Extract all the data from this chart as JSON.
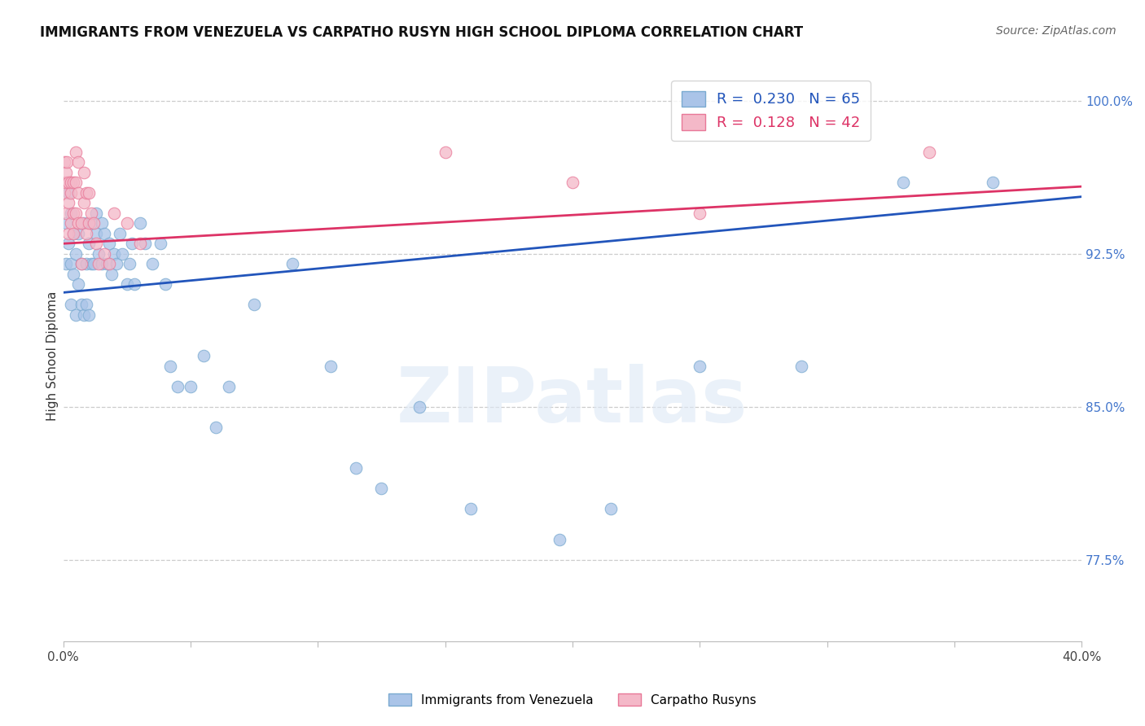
{
  "title": "IMMIGRANTS FROM VENEZUELA VS CARPATHO RUSYN HIGH SCHOOL DIPLOMA CORRELATION CHART",
  "source": "Source: ZipAtlas.com",
  "ylabel": "High School Diploma",
  "xlim": [
    0.0,
    0.4
  ],
  "ylim": [
    0.735,
    1.015
  ],
  "xticks": [
    0.0,
    0.05,
    0.1,
    0.15,
    0.2,
    0.25,
    0.3,
    0.35,
    0.4
  ],
  "xtick_labels": [
    "0.0%",
    "",
    "",
    "",
    "",
    "",
    "",
    "",
    "40.0%"
  ],
  "ytick_labels_right": [
    "100.0%",
    "92.5%",
    "85.0%",
    "77.5%"
  ],
  "yticks_right": [
    1.0,
    0.925,
    0.85,
    0.775
  ],
  "grid_color": "#cccccc",
  "background_color": "#ffffff",
  "watermark": "ZIPatlas",
  "legend_R_blue": "0.230",
  "legend_N_blue": "65",
  "legend_R_pink": "0.128",
  "legend_N_pink": "42",
  "blue_color": "#aac4e8",
  "pink_color": "#f4b8c8",
  "blue_edge_color": "#7aaad0",
  "pink_edge_color": "#e87898",
  "blue_line_color": "#2255bb",
  "pink_line_color": "#dd3366",
  "blue_trend": [
    0.0,
    0.4,
    0.906,
    0.953
  ],
  "pink_trend": [
    0.0,
    0.4,
    0.93,
    0.958
  ],
  "blue_scatter_x": [
    0.001,
    0.001,
    0.002,
    0.002,
    0.003,
    0.003,
    0.003,
    0.004,
    0.004,
    0.005,
    0.005,
    0.006,
    0.006,
    0.007,
    0.007,
    0.008,
    0.008,
    0.009,
    0.009,
    0.01,
    0.01,
    0.011,
    0.011,
    0.012,
    0.013,
    0.013,
    0.014,
    0.015,
    0.015,
    0.016,
    0.017,
    0.018,
    0.019,
    0.02,
    0.021,
    0.022,
    0.023,
    0.025,
    0.026,
    0.027,
    0.028,
    0.03,
    0.032,
    0.035,
    0.038,
    0.04,
    0.042,
    0.045,
    0.05,
    0.055,
    0.06,
    0.065,
    0.075,
    0.09,
    0.105,
    0.115,
    0.125,
    0.14,
    0.16,
    0.195,
    0.215,
    0.25,
    0.29,
    0.33,
    0.365
  ],
  "blue_scatter_y": [
    0.92,
    0.94,
    0.93,
    0.955,
    0.9,
    0.92,
    0.945,
    0.915,
    0.935,
    0.895,
    0.925,
    0.91,
    0.935,
    0.9,
    0.92,
    0.895,
    0.94,
    0.92,
    0.9,
    0.895,
    0.93,
    0.92,
    0.94,
    0.92,
    0.935,
    0.945,
    0.925,
    0.92,
    0.94,
    0.935,
    0.92,
    0.93,
    0.915,
    0.925,
    0.92,
    0.935,
    0.925,
    0.91,
    0.92,
    0.93,
    0.91,
    0.94,
    0.93,
    0.92,
    0.93,
    0.91,
    0.87,
    0.86,
    0.86,
    0.875,
    0.84,
    0.86,
    0.9,
    0.92,
    0.87,
    0.82,
    0.81,
    0.85,
    0.8,
    0.785,
    0.8,
    0.87,
    0.87,
    0.96,
    0.96
  ],
  "pink_scatter_x": [
    0.0003,
    0.0005,
    0.0008,
    0.001,
    0.001,
    0.0015,
    0.002,
    0.002,
    0.002,
    0.003,
    0.003,
    0.003,
    0.004,
    0.004,
    0.004,
    0.005,
    0.005,
    0.005,
    0.006,
    0.006,
    0.006,
    0.007,
    0.007,
    0.008,
    0.008,
    0.009,
    0.009,
    0.01,
    0.01,
    0.011,
    0.012,
    0.013,
    0.014,
    0.016,
    0.018,
    0.02,
    0.025,
    0.03,
    0.15,
    0.2,
    0.25,
    0.34
  ],
  "pink_scatter_y": [
    0.955,
    0.97,
    0.96,
    0.945,
    0.965,
    0.97,
    0.95,
    0.935,
    0.96,
    0.955,
    0.94,
    0.96,
    0.945,
    0.96,
    0.935,
    0.945,
    0.96,
    0.975,
    0.94,
    0.955,
    0.97,
    0.92,
    0.94,
    0.95,
    0.965,
    0.935,
    0.955,
    0.94,
    0.955,
    0.945,
    0.94,
    0.93,
    0.92,
    0.925,
    0.92,
    0.945,
    0.94,
    0.93,
    0.975,
    0.96,
    0.945,
    0.975
  ]
}
